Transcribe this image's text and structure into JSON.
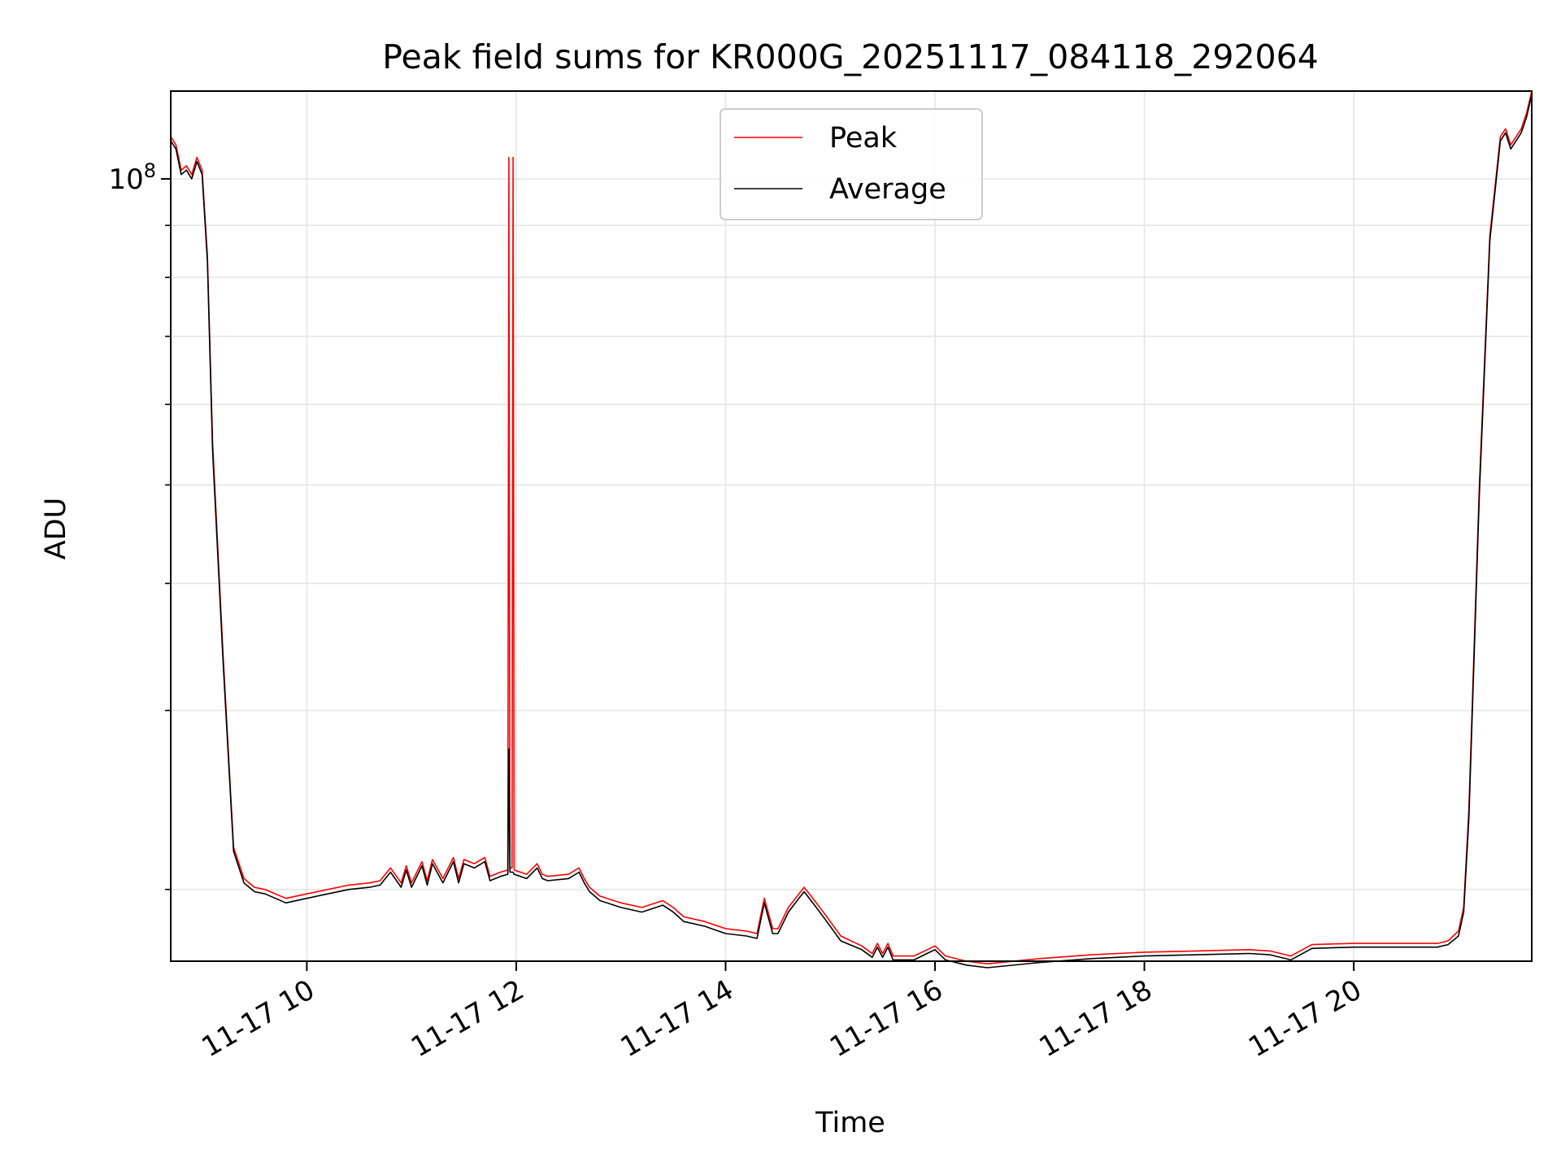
{
  "chart_data": {
    "type": "line",
    "title": "Peak field sums for KR000G_20251117_084118_292064",
    "xlabel": "Time",
    "ylabel": "ADU",
    "yscale": "log",
    "xlim": [
      8.7,
      21.7
    ],
    "ylim": [
      17000000,
      122000000
    ],
    "x_ticks": [
      {
        "value": 10,
        "label": "11-17 10"
      },
      {
        "value": 12,
        "label": "11-17 12"
      },
      {
        "value": 14,
        "label": "11-17 14"
      },
      {
        "value": 16,
        "label": "11-17 16"
      },
      {
        "value": 18,
        "label": "11-17 18"
      },
      {
        "value": 20,
        "label": "11-17 20"
      }
    ],
    "y_major_ticks": [
      {
        "value": 100000000,
        "base": "10",
        "exp": "8"
      }
    ],
    "y_minor_ticks": [
      20000000,
      30000000,
      40000000,
      50000000,
      60000000,
      70000000,
      80000000,
      90000000
    ],
    "grid": true,
    "legend": {
      "position": "top-center",
      "entries": [
        "Peak",
        "Average"
      ]
    },
    "colors": {
      "Peak": "#ff0000",
      "Average": "#000000"
    },
    "series": [
      {
        "name": "Peak",
        "x": [
          8.7,
          8.75,
          8.8,
          8.85,
          8.9,
          8.95,
          9.0,
          9.05,
          9.1,
          9.2,
          9.3,
          9.4,
          9.5,
          9.6,
          9.7,
          9.8,
          10.0,
          10.2,
          10.4,
          10.6,
          10.7,
          10.8,
          10.9,
          10.95,
          11.0,
          11.1,
          11.15,
          11.2,
          11.3,
          11.4,
          11.45,
          11.5,
          11.6,
          11.7,
          11.75,
          11.85,
          11.92,
          11.93,
          11.94,
          11.96,
          11.97,
          11.98,
          12.1,
          12.2,
          12.25,
          12.3,
          12.5,
          12.6,
          12.65,
          12.7,
          12.8,
          13.0,
          13.2,
          13.4,
          13.5,
          13.6,
          13.8,
          14.0,
          14.2,
          14.3,
          14.37,
          14.45,
          14.5,
          14.6,
          14.7,
          14.75,
          14.85,
          14.95,
          15.1,
          15.3,
          15.4,
          15.45,
          15.5,
          15.55,
          15.6,
          15.8,
          15.95,
          16.0,
          16.1,
          16.3,
          16.5,
          17.0,
          17.5,
          18.0,
          18.5,
          19.0,
          19.2,
          19.4,
          19.6,
          20.0,
          20.5,
          20.8,
          20.9,
          21.0,
          21.05,
          21.1,
          21.2,
          21.3,
          21.4,
          21.45,
          21.5,
          21.55,
          21.6,
          21.65,
          21.7
        ],
        "values": [
          110000000,
          108000000,
          102000000,
          103000000,
          101000000,
          105000000,
          102000000,
          84000000,
          55000000,
          34000000,
          22000000,
          20500000,
          20100000,
          20000000,
          19800000,
          19600000,
          19800000,
          20000000,
          20200000,
          20300000,
          20400000,
          21000000,
          20300000,
          21100000,
          20300000,
          21300000,
          20400000,
          21400000,
          20500000,
          21500000,
          20500000,
          21400000,
          21200000,
          21500000,
          20600000,
          20800000,
          20900000,
          105000000,
          21000000,
          21000000,
          105000000,
          20900000,
          20700000,
          21200000,
          20700000,
          20600000,
          20700000,
          21000000,
          20500000,
          20100000,
          19700000,
          19400000,
          19200000,
          19500000,
          19200000,
          18800000,
          18600000,
          18300000,
          18200000,
          18100000,
          19600000,
          18300000,
          18300000,
          19200000,
          19800000,
          20100000,
          19500000,
          18900000,
          18000000,
          17600000,
          17300000,
          17700000,
          17300000,
          17700000,
          17200000,
          17200000,
          17500000,
          17600000,
          17200000,
          17000000,
          16900000,
          17100000,
          17250000,
          17350000,
          17400000,
          17450000,
          17400000,
          17200000,
          17650000,
          17700000,
          17700000,
          17700000,
          17800000,
          18200000,
          19200000,
          24000000,
          50000000,
          88000000,
          110000000,
          112000000,
          108000000,
          110000000,
          112000000,
          116000000,
          122000000
        ]
      },
      {
        "name": "Average",
        "x": [
          8.7,
          8.75,
          8.8,
          8.85,
          8.9,
          8.95,
          9.0,
          9.05,
          9.1,
          9.2,
          9.3,
          9.4,
          9.5,
          9.6,
          9.7,
          9.8,
          10.0,
          10.2,
          10.4,
          10.6,
          10.7,
          10.8,
          10.9,
          10.95,
          11.0,
          11.1,
          11.15,
          11.2,
          11.3,
          11.4,
          11.45,
          11.5,
          11.6,
          11.7,
          11.75,
          11.85,
          11.92,
          11.93,
          11.94,
          11.96,
          11.97,
          11.98,
          12.1,
          12.2,
          12.25,
          12.3,
          12.5,
          12.6,
          12.65,
          12.7,
          12.8,
          13.0,
          13.2,
          13.4,
          13.5,
          13.6,
          13.8,
          14.0,
          14.2,
          14.3,
          14.37,
          14.45,
          14.5,
          14.6,
          14.7,
          14.75,
          14.85,
          14.95,
          15.1,
          15.3,
          15.4,
          15.45,
          15.5,
          15.55,
          15.6,
          15.8,
          15.95,
          16.0,
          16.1,
          16.3,
          16.5,
          17.0,
          17.5,
          18.0,
          18.5,
          19.0,
          19.2,
          19.4,
          19.6,
          20.0,
          20.5,
          20.8,
          20.9,
          21.0,
          21.05,
          21.1,
          21.2,
          21.3,
          21.4,
          21.45,
          21.5,
          21.55,
          21.6,
          21.65,
          21.7
        ],
        "values": [
          109000000,
          107000000,
          101000000,
          102000000,
          100000000,
          104000000,
          101000000,
          83000000,
          54000000,
          33500000,
          21800000,
          20300000,
          19900000,
          19800000,
          19600000,
          19400000,
          19600000,
          19800000,
          20000000,
          20100000,
          20200000,
          20800000,
          20100000,
          20900000,
          20100000,
          21100000,
          20200000,
          21200000,
          20300000,
          21300000,
          20300000,
          21200000,
          21000000,
          21300000,
          20400000,
          20600000,
          20700000,
          27500000,
          20800000,
          20800000,
          20800000,
          20700000,
          20500000,
          21000000,
          20500000,
          20400000,
          20500000,
          20800000,
          20300000,
          19900000,
          19500000,
          19200000,
          19000000,
          19300000,
          19000000,
          18600000,
          18400000,
          18100000,
          18000000,
          17900000,
          19400000,
          18100000,
          18100000,
          19000000,
          19600000,
          19900000,
          19300000,
          18700000,
          17800000,
          17450000,
          17150000,
          17550000,
          17150000,
          17550000,
          17050000,
          17050000,
          17350000,
          17450000,
          17050000,
          16850000,
          16750000,
          16950000,
          17100000,
          17200000,
          17250000,
          17300000,
          17250000,
          17050000,
          17500000,
          17550000,
          17550000,
          17550000,
          17650000,
          18000000,
          19000000,
          23500000,
          49000000,
          87000000,
          109000000,
          111000000,
          107000000,
          109000000,
          111000000,
          115000000,
          121000000
        ]
      }
    ]
  }
}
